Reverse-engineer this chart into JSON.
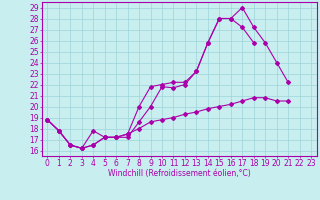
{
  "xlabel": "Windchill (Refroidissement éolien,°C)",
  "ylabel": "",
  "xlim": [
    -0.5,
    23.5
  ],
  "ylim": [
    15.5,
    29.5
  ],
  "xticks": [
    0,
    1,
    2,
    3,
    4,
    5,
    6,
    7,
    8,
    9,
    10,
    11,
    12,
    13,
    14,
    15,
    16,
    17,
    18,
    19,
    20,
    21,
    22,
    23
  ],
  "yticks": [
    16,
    17,
    18,
    19,
    20,
    21,
    22,
    23,
    24,
    25,
    26,
    27,
    28,
    29
  ],
  "background_color": "#c8eef0",
  "line_color": "#aa00aa",
  "grid_color": "#9ed4d8",
  "line1_x": [
    0,
    1,
    2,
    3,
    4,
    5,
    6,
    7,
    8,
    9,
    10,
    11,
    12,
    13,
    14,
    15,
    16,
    17,
    18,
    19,
    20,
    21
  ],
  "line1_y": [
    18.8,
    17.8,
    16.5,
    16.2,
    17.8,
    17.2,
    17.2,
    17.2,
    18.6,
    20.0,
    21.8,
    21.7,
    22.0,
    23.2,
    25.8,
    28.0,
    28.0,
    29.0,
    27.2,
    25.8,
    24.0,
    22.2
  ],
  "line2_x": [
    0,
    1,
    2,
    3,
    4,
    5,
    6,
    7,
    8,
    9,
    10,
    11,
    12,
    13,
    14,
    15,
    16,
    17,
    18
  ],
  "line2_y": [
    18.8,
    17.8,
    16.5,
    16.2,
    16.5,
    17.2,
    17.2,
    17.5,
    20.0,
    21.8,
    22.0,
    22.2,
    22.2,
    23.2,
    25.8,
    28.0,
    28.0,
    27.2,
    25.8
  ],
  "line3_x": [
    0,
    1,
    2,
    3,
    4,
    5,
    6,
    7,
    8,
    9,
    10,
    11,
    12,
    13,
    14,
    15,
    16,
    17,
    18,
    19,
    20,
    21
  ],
  "line3_y": [
    18.8,
    17.8,
    16.5,
    16.2,
    16.5,
    17.2,
    17.2,
    17.5,
    18.0,
    18.6,
    18.8,
    19.0,
    19.3,
    19.5,
    19.8,
    20.0,
    20.2,
    20.5,
    20.8,
    20.8,
    20.5,
    20.5
  ],
  "tick_fontsize": 5.5,
  "xlabel_fontsize": 5.5,
  "marker_size": 2.0,
  "linewidth": 0.8
}
